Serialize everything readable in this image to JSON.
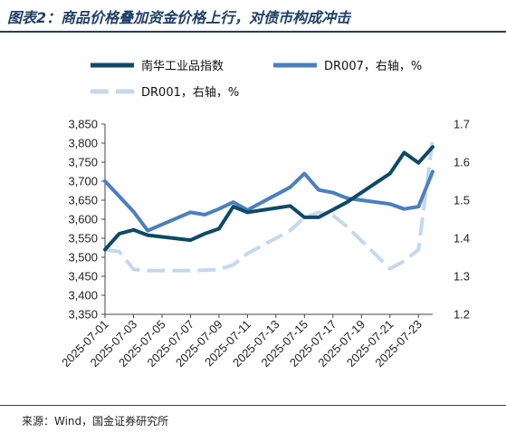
{
  "figure": {
    "title": "图表2：商品价格叠加资金价格上行，对债市构成冲击",
    "source": "来源：Wind，国金证券研究所"
  },
  "chart_data": {
    "type": "line",
    "title": "",
    "dates": [
      "2025-07-01",
      "2025-07-02",
      "2025-07-03",
      "2025-07-04",
      "2025-07-07",
      "2025-07-08",
      "2025-07-09",
      "2025-07-10",
      "2025-07-11",
      "2025-07-14",
      "2025-07-15",
      "2025-07-16",
      "2025-07-17",
      "2025-07-18",
      "2025-07-21",
      "2025-07-22",
      "2025-07-23",
      "2025-07-24"
    ],
    "x_tick_labels": [
      "2025-07-01",
      "2025-07-03",
      "2025-07-05",
      "2025-07-07",
      "2025-07-09",
      "2025-07-11",
      "2025-07-13",
      "2025-07-15",
      "2025-07-17",
      "2025-07-19",
      "2025-07-21",
      "2025-07-23"
    ],
    "left_axis": {
      "ylim": [
        3350,
        3850
      ],
      "ticks": [
        "3,350",
        "3,400",
        "3,450",
        "3,500",
        "3,550",
        "3,600",
        "3,650",
        "3,700",
        "3,750",
        "3,800",
        "3,850"
      ]
    },
    "right_axis": {
      "ylim": [
        1.2,
        1.7
      ],
      "ticks": [
        "1.2",
        "1.3",
        "1.4",
        "1.5",
        "1.6",
        "1.7"
      ]
    },
    "legend_placement": "top",
    "series": [
      {
        "name": "南华工业品指数",
        "axis": "left",
        "color": "#0d4a66",
        "style": "solid",
        "x": [
          "2025-07-01",
          "2025-07-02",
          "2025-07-03",
          "2025-07-04",
          "2025-07-07",
          "2025-07-08",
          "2025-07-09",
          "2025-07-10",
          "2025-07-11",
          "2025-07-14",
          "2025-07-15",
          "2025-07-16",
          "2025-07-17",
          "2025-07-18",
          "2025-07-21",
          "2025-07-22",
          "2025-07-23",
          "2025-07-24"
        ],
        "values": [
          3520,
          3562,
          3572,
          3558,
          3545,
          3562,
          3575,
          3633,
          3618,
          3635,
          3605,
          3605,
          3625,
          3645,
          3720,
          3775,
          3748,
          3790
        ]
      },
      {
        "name": "DR007，右轴，%",
        "axis": "right",
        "color": "#4a7fc0",
        "style": "solid",
        "x": [
          "2025-07-01",
          "2025-07-03",
          "2025-07-04",
          "2025-07-07",
          "2025-07-08",
          "2025-07-09",
          "2025-07-10",
          "2025-07-11",
          "2025-07-14",
          "2025-07-15",
          "2025-07-16",
          "2025-07-17",
          "2025-07-18",
          "2025-07-21",
          "2025-07-22",
          "2025-07-23",
          "2025-07-24"
        ],
        "values": [
          1.55,
          1.47,
          1.42,
          1.468,
          1.462,
          1.477,
          1.495,
          1.474,
          1.534,
          1.57,
          1.527,
          1.52,
          1.505,
          1.49,
          1.477,
          1.483,
          1.575
        ]
      },
      {
        "name": "DR001，右轴，%",
        "axis": "right",
        "color": "#c5d8ec",
        "style": "dashed",
        "x": [
          "2025-07-01",
          "2025-07-02",
          "2025-07-03",
          "2025-07-04",
          "2025-07-07",
          "2025-07-08",
          "2025-07-09",
          "2025-07-10",
          "2025-07-11",
          "2025-07-14",
          "2025-07-15",
          "2025-07-16",
          "2025-07-17",
          "2025-07-18",
          "2025-07-21",
          "2025-07-22",
          "2025-07-23",
          "2025-07-24"
        ],
        "values": [
          1.37,
          1.365,
          1.318,
          1.315,
          1.315,
          1.316,
          1.318,
          1.33,
          1.36,
          1.42,
          1.455,
          1.468,
          1.46,
          1.43,
          1.32,
          1.34,
          1.37,
          1.66
        ]
      }
    ]
  }
}
